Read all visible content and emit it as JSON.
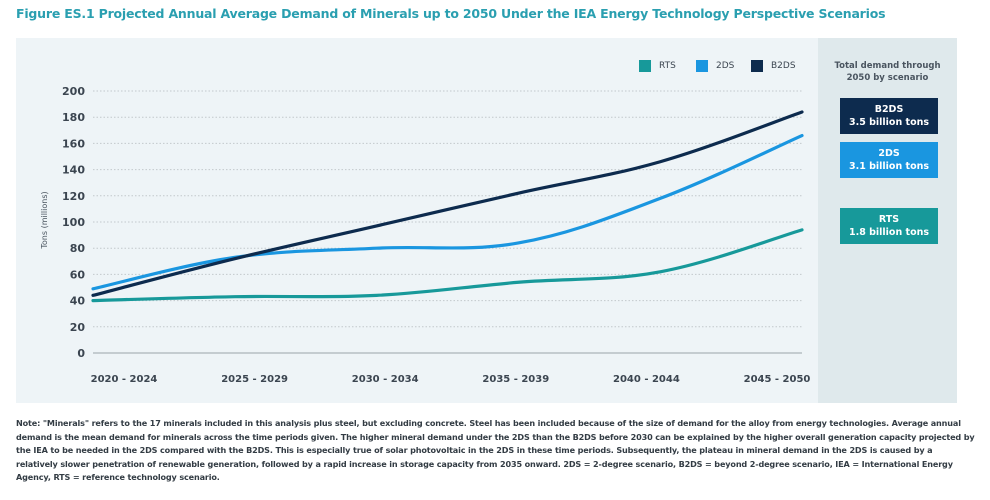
{
  "figure": {
    "title": "Figure ES.1 Projected Annual Average Demand of Minerals up to 2050 Under the IEA Energy Technology Perspective Scenarios",
    "note": "Note: \"Minerals\" refers to the 17 minerals included in this analysis plus steel, but excluding concrete. Steel has been included because of the size of demand for the alloy from energy technologies. Average annual demand is the mean demand for minerals across the time periods given. The higher mineral demand under the 2DS than the B2DS before 2030 can be explained by the higher overall generation capacity projected by the IEA to be needed in the 2DS compared with the B2DS. This is especially true of solar photovoltaic in the 2DS in these time periods. Subsequently, the plateau in mineral demand in the 2DS is caused by a relatively slower penetration of renewable generation, followed by a rapid increase in storage capacity from 2035 onward. 2DS = 2-degree scenario, B2DS = beyond 2-degree scenario, IEA = International Energy Agency, RTS = reference technology scenario."
  },
  "side_panel": {
    "heading_line1": "Total demand through",
    "heading_line2": "2050 by scenario",
    "totals": [
      {
        "scenario": "B2DS",
        "value": "3.5 billion tons",
        "color": "#0d2b4e"
      },
      {
        "scenario": "2DS",
        "value": "3.1 billion tons",
        "color": "#1a96e0"
      },
      {
        "scenario": "RTS",
        "value": "1.8 billion tons",
        "color": "#17999a"
      }
    ]
  },
  "colors": {
    "title": "#2a9fb0",
    "grid": "#c2c8cc",
    "axis_text": "#3b4550"
  },
  "chart_data": {
    "type": "line",
    "title": "Projected Annual Average Demand of Minerals up to 2050",
    "xlabel": "",
    "ylabel": "Tons (millions)",
    "categories": [
      "2020 - 2024",
      "2025 - 2029",
      "2030 - 2034",
      "2035 - 2039",
      "2040 - 2044",
      "2045 - 2050"
    ],
    "ylim": [
      0,
      200
    ],
    "yticks": [
      0,
      20,
      40,
      60,
      80,
      100,
      120,
      140,
      160,
      180,
      200
    ],
    "grid": true,
    "legend_position": "top-right",
    "series": [
      {
        "name": "RTS",
        "color": "#17999a",
        "values": [
          40,
          43,
          44,
          54,
          62,
          94
        ]
      },
      {
        "name": "2DS",
        "color": "#1a96e0",
        "values": [
          49,
          73,
          80,
          84,
          118,
          166
        ]
      },
      {
        "name": "B2DS",
        "color": "#0d2b4e",
        "values": [
          44,
          72,
          97,
          122,
          146,
          184
        ]
      }
    ]
  }
}
